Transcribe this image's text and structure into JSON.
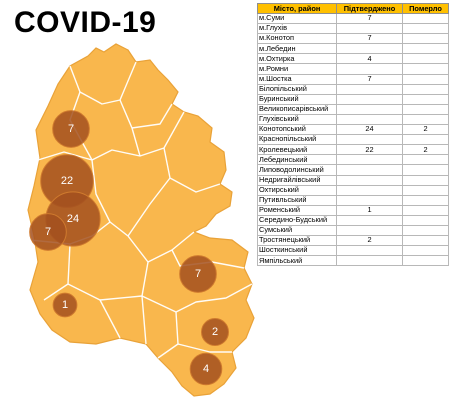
{
  "title": "COVID-19",
  "table": {
    "headers": [
      "Місто, район",
      "Підтверджено",
      "Померло"
    ],
    "rows": [
      [
        "м.Суми",
        "7",
        ""
      ],
      [
        "м.Глухів",
        "",
        ""
      ],
      [
        "м.Конотоп",
        "7",
        ""
      ],
      [
        "м.Лебедин",
        "",
        ""
      ],
      [
        "м.Охтирка",
        "4",
        ""
      ],
      [
        "м.Ромни",
        "",
        ""
      ],
      [
        "м.Шостка",
        "7",
        ""
      ],
      [
        "Білопільський",
        "",
        ""
      ],
      [
        "Буринський",
        "",
        ""
      ],
      [
        "Великописарівський",
        "",
        ""
      ],
      [
        "Глухівський",
        "",
        ""
      ],
      [
        "Конотопський",
        "24",
        "2"
      ],
      [
        "Краснопільський",
        "",
        ""
      ],
      [
        "Кролевецький",
        "22",
        "2"
      ],
      [
        "Лебединський",
        "",
        ""
      ],
      [
        "Липоводолинський",
        "",
        ""
      ],
      [
        "Недригайлівський",
        "",
        ""
      ],
      [
        "Охтирський",
        "",
        ""
      ],
      [
        "Путивльський",
        "",
        ""
      ],
      [
        "Роменський",
        "1",
        ""
      ],
      [
        "Середино-Будський",
        "",
        ""
      ],
      [
        "Сумський",
        "",
        ""
      ],
      [
        "Тростянецький",
        "2",
        ""
      ],
      [
        "Шосткинський",
        "",
        ""
      ],
      [
        "Ямпільський",
        "",
        ""
      ]
    ]
  },
  "map": {
    "colors": {
      "region_fill": "#f9b74d",
      "region_border": "#e9a238",
      "district_lines": "#ffffff",
      "bubble_fill": "#a3501f",
      "label_color": "#ffffff"
    },
    "bubbles": [
      {
        "label": "7",
        "value": 7
      },
      {
        "label": "22",
        "value": 22
      },
      {
        "label": "24",
        "value": 24
      },
      {
        "label": "7",
        "value": 7
      },
      {
        "label": "7",
        "value": 7
      },
      {
        "label": "1",
        "value": 1
      },
      {
        "label": "2",
        "value": 2
      },
      {
        "label": "4",
        "value": 4
      }
    ]
  }
}
